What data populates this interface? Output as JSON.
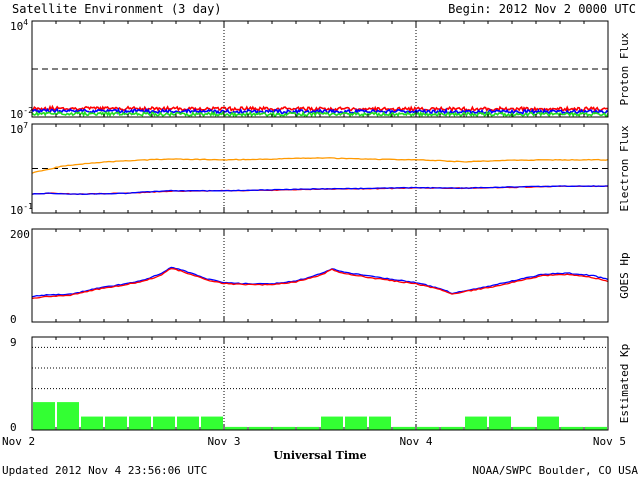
{
  "header": {
    "title": "Satellite Environment (3 day)",
    "begin": "Begin:  2012 Nov 2 0000 UTC"
  },
  "footer": {
    "updated": "Updated 2012 Nov  4 23:56:06 UTC",
    "source": "NOAA/SWPC Boulder, CO USA"
  },
  "colors": {
    "red": "#ff0000",
    "blue": "#0000ff",
    "green": "#22dd22",
    "orange": "#ff9900",
    "kp_bar": "#33ff33"
  },
  "chart_data": [
    {
      "id": "proton",
      "type": "line",
      "ylabel": "Proton Flux",
      "yscale": "log",
      "ylim": [
        0.01,
        10000
      ],
      "yticks": [
        {
          "base": "10",
          "exp": "4"
        },
        {
          "base": "10",
          "exp": "-2"
        }
      ],
      "threshold": 10,
      "xlim": [
        0,
        72
      ],
      "series": [
        {
          "color": "red",
          "x": [
            0,
            12,
            24,
            36,
            48,
            60,
            72
          ],
          "y": [
            0.035,
            0.034,
            0.033,
            0.032,
            0.031,
            0.032,
            0.032
          ]
        },
        {
          "color": "blue",
          "x": [
            0,
            12,
            24,
            36,
            48,
            60,
            72
          ],
          "y": [
            0.024,
            0.023,
            0.022,
            0.022,
            0.022,
            0.021,
            0.021
          ]
        },
        {
          "color": "green",
          "x": [
            0,
            12,
            24,
            36,
            48,
            60,
            72
          ],
          "y": [
            0.016,
            0.015,
            0.015,
            0.015,
            0.015,
            0.015,
            0.015
          ]
        }
      ]
    },
    {
      "id": "electron",
      "type": "line",
      "ylabel": "Electron Flux",
      "yscale": "log",
      "ylim": [
        0.1,
        10000000
      ],
      "yticks": [
        {
          "base": "10",
          "exp": "7"
        },
        {
          "base": "10",
          "exp": "-1"
        }
      ],
      "threshold": 1000,
      "xlim": [
        0,
        72
      ],
      "series": [
        {
          "color": "orange",
          "x": [
            0,
            2,
            6,
            12,
            17,
            24,
            30,
            36,
            42,
            48,
            54,
            60,
            66,
            72
          ],
          "y": [
            400,
            800,
            2500,
            5000,
            7000,
            6000,
            7000,
            9000,
            7000,
            6000,
            4000,
            5500,
            6000,
            6000
          ]
        },
        {
          "color": "red",
          "x": [
            0,
            2,
            6,
            12,
            17,
            24,
            30,
            36,
            42,
            48,
            54,
            60,
            66,
            72
          ],
          "y": [
            5,
            6,
            5,
            6,
            9,
            10,
            11,
            14,
            15,
            18,
            17,
            20,
            25,
            25
          ]
        },
        {
          "color": "blue",
          "x": [
            0,
            2,
            6,
            12,
            17,
            24,
            30,
            36,
            42,
            48,
            54,
            60,
            66,
            72
          ],
          "y": [
            5,
            6,
            5,
            6,
            10,
            10,
            12,
            15,
            16,
            19,
            17,
            22,
            26,
            26
          ]
        }
      ]
    },
    {
      "id": "hp",
      "type": "line",
      "ylabel": "GOES Hp",
      "yscale": "linear",
      "ylim": [
        0,
        200
      ],
      "yticks": [
        "200",
        "0"
      ],
      "xlim": [
        0,
        72
      ],
      "series": [
        {
          "color": "blue",
          "x": [
            0,
            2,
            5,
            8,
            11,
            14,
            16,
            17.5,
            19,
            22,
            24,
            27,
            30,
            33,
            36,
            37.5,
            39,
            42,
            45,
            48,
            51,
            52.5,
            55,
            58,
            61,
            64,
            67,
            70,
            72
          ],
          "y": [
            55,
            58,
            60,
            72,
            80,
            90,
            103,
            118,
            110,
            92,
            85,
            82,
            82,
            88,
            103,
            115,
            107,
            99,
            92,
            85,
            72,
            62,
            70,
            80,
            92,
            103,
            105,
            100,
            92
          ]
        },
        {
          "color": "red",
          "x": [
            0,
            2,
            5,
            8,
            11,
            14,
            16,
            17.5,
            19,
            22,
            24,
            27,
            30,
            33,
            36,
            37.5,
            39,
            42,
            45,
            48,
            51,
            52.5,
            55,
            58,
            61,
            64,
            67,
            70,
            72
          ],
          "y": [
            50,
            55,
            58,
            70,
            78,
            88,
            100,
            116,
            107,
            90,
            83,
            80,
            80,
            86,
            100,
            113,
            104,
            96,
            89,
            82,
            70,
            60,
            68,
            77,
            89,
            100,
            102,
            96,
            88
          ]
        }
      ]
    },
    {
      "id": "kp",
      "type": "bar",
      "ylabel": "Estimated Kp",
      "ylim": [
        0,
        9
      ],
      "yticks": [
        "9",
        "0"
      ],
      "gridlines": [
        4,
        6,
        8
      ],
      "xlim": [
        0,
        72
      ],
      "bar_width": 3,
      "values": [
        2.7,
        2.7,
        1.3,
        1.3,
        1.3,
        1.3,
        1.3,
        1.3,
        0.3,
        0.3,
        0.3,
        0.3,
        1.3,
        1.3,
        1.3,
        0.3,
        0.3,
        0.3,
        1.3,
        1.3,
        0.3,
        1.3,
        0.3,
        0.3
      ]
    }
  ],
  "xaxis": {
    "label": "Universal Time",
    "ticks": [
      {
        "x": 0,
        "label": "Nov 2"
      },
      {
        "x": 24,
        "label": "Nov 3"
      },
      {
        "x": 48,
        "label": "Nov 4"
      },
      {
        "x": 72,
        "label": "Nov 5"
      }
    ]
  }
}
